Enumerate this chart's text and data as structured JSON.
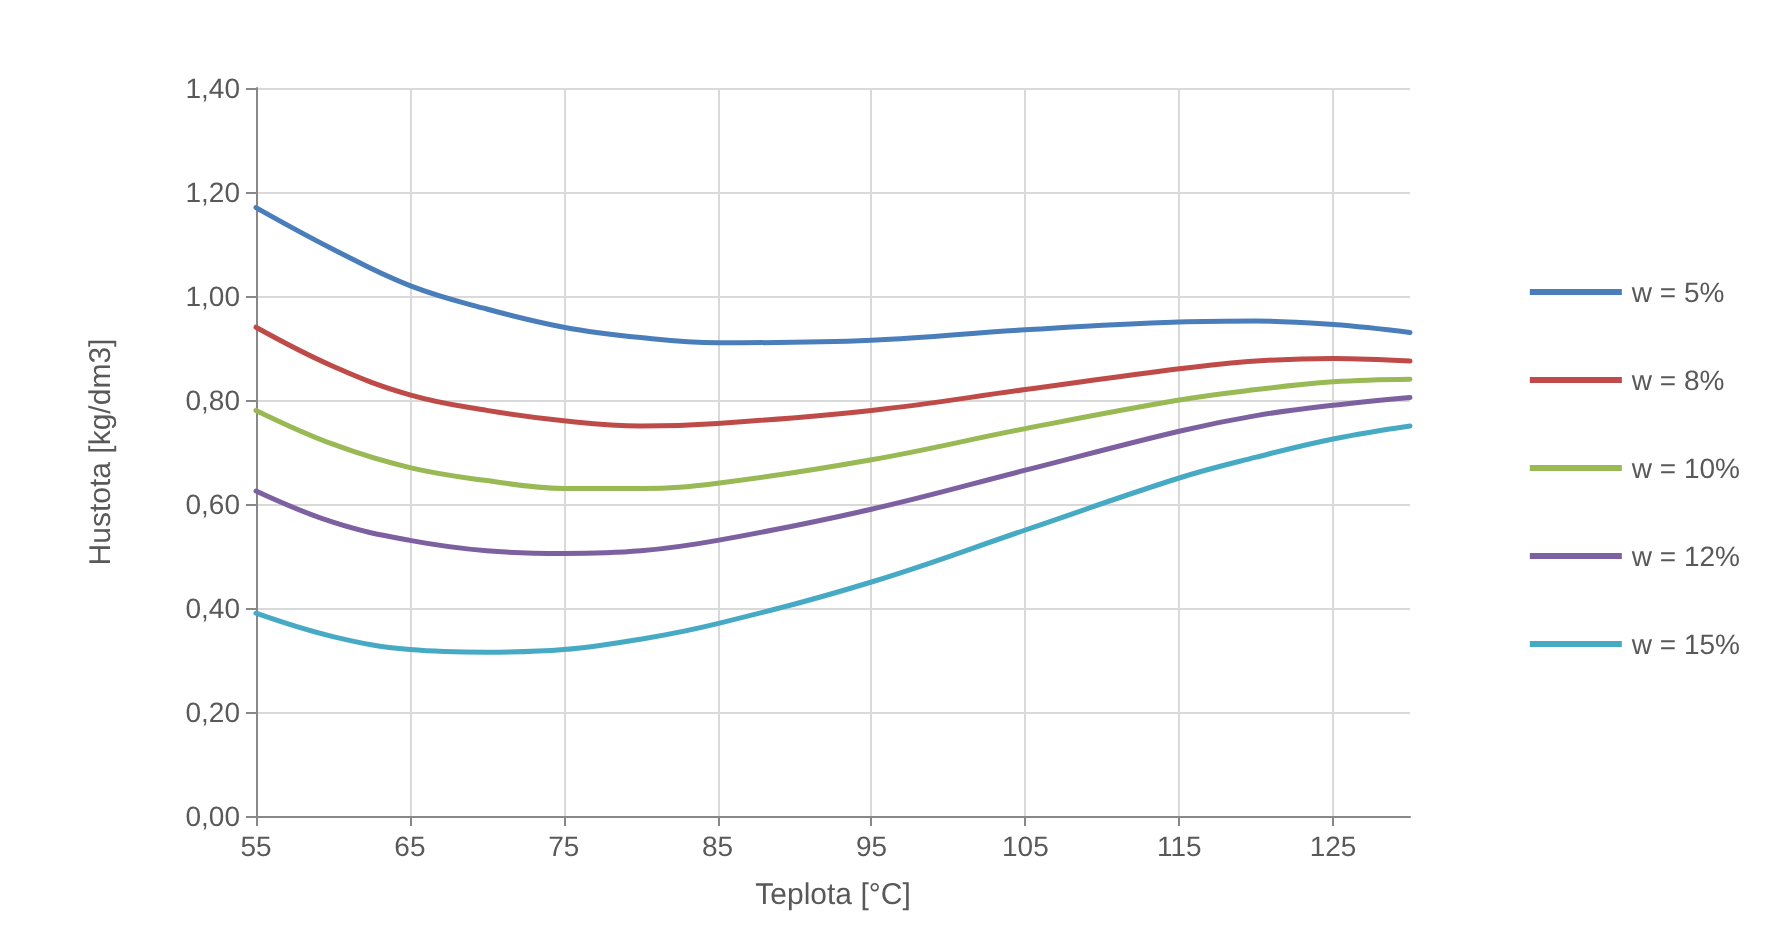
{
  "chart_data": {
    "type": "line",
    "xlabel": "Teplota [°C]",
    "ylabel": "Hustota [kg/dm3]",
    "x": [
      55,
      60,
      65,
      70,
      75,
      80,
      85,
      95,
      105,
      115,
      120,
      125,
      130
    ],
    "series": [
      {
        "name": "w = 5%",
        "color": "#4a7ebb",
        "values": [
          1.17,
          1.09,
          1.02,
          0.975,
          0.94,
          0.92,
          0.91,
          0.915,
          0.935,
          0.95,
          0.952,
          0.945,
          0.93
        ]
      },
      {
        "name": "w = 8%",
        "color": "#be4b48",
        "values": [
          0.94,
          0.865,
          0.81,
          0.78,
          0.76,
          0.75,
          0.755,
          0.78,
          0.82,
          0.86,
          0.875,
          0.88,
          0.875
        ]
      },
      {
        "name": "w = 10%",
        "color": "#98b954",
        "values": [
          0.78,
          0.715,
          0.67,
          0.645,
          0.63,
          0.63,
          0.64,
          0.685,
          0.745,
          0.8,
          0.82,
          0.835,
          0.84
        ]
      },
      {
        "name": "w = 12%",
        "color": "#7d60a0",
        "values": [
          0.625,
          0.565,
          0.53,
          0.51,
          0.505,
          0.51,
          0.53,
          0.59,
          0.665,
          0.74,
          0.77,
          0.79,
          0.805
        ]
      },
      {
        "name": "w = 15%",
        "color": "#46aac5",
        "values": [
          0.39,
          0.345,
          0.32,
          0.315,
          0.32,
          0.34,
          0.37,
          0.45,
          0.55,
          0.65,
          0.69,
          0.725,
          0.75
        ]
      }
    ],
    "xlim": [
      55,
      130
    ],
    "xticks": [
      55,
      65,
      75,
      85,
      95,
      105,
      115,
      125
    ],
    "ylim": [
      0,
      1.4
    ],
    "yticks": [
      {
        "value": 0,
        "label": "0,00"
      },
      {
        "value": 0.2,
        "label": "0,20"
      },
      {
        "value": 0.4,
        "label": "0,40"
      },
      {
        "value": 0.6,
        "label": "0,60"
      },
      {
        "value": 0.8,
        "label": "0,80"
      },
      {
        "value": 1,
        "label": "1,00"
      },
      {
        "value": 1.2,
        "label": "1,20"
      },
      {
        "value": 1.4,
        "label": "1,40"
      }
    ],
    "grid": true,
    "legend": "right",
    "marker": "none",
    "line_style": "solid"
  }
}
